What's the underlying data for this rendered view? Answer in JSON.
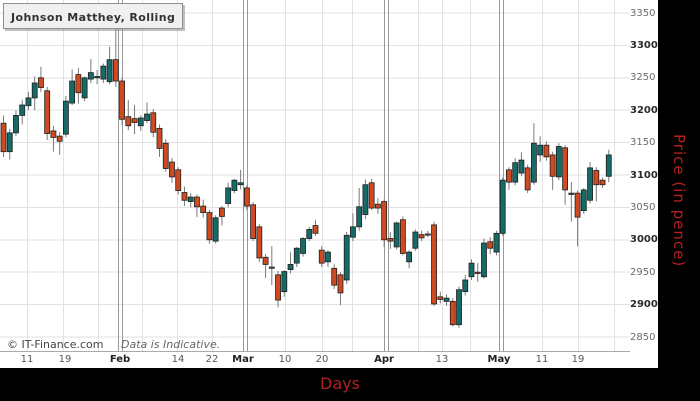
{
  "title_box": {
    "text": "Johnson Matthey, Rolling"
  },
  "footnote": {
    "copyright": "© IT-Finance.com",
    "note": "Data is Indicative."
  },
  "colors": {
    "up_candle": "#156b66",
    "down_candle": "#cf4a21",
    "candle_border": "#1f1f1f",
    "wick": "#7a7a7a",
    "grid": "#e2e2e2",
    "month_line": "#999999",
    "plot_border": "#aaaaaa",
    "axis_title_red": "#b42020",
    "band_black": "#000000"
  },
  "chart_data": {
    "type": "candlestick",
    "title": "Johnson Matthey, Rolling",
    "xlabel": "Days",
    "ylabel": "Price (in pence)",
    "ylim": [
      2840,
      3360
    ],
    "y_ticks": [
      3350,
      3300,
      3250,
      3200,
      3150,
      3100,
      3050,
      3000,
      2950,
      2900,
      2850
    ],
    "x_ticks": [
      {
        "label": "11",
        "x": 27,
        "bold": false
      },
      {
        "label": "19",
        "x": 65,
        "bold": false
      },
      {
        "label": "Feb",
        "x": 120,
        "bold": true
      },
      {
        "label": "14",
        "x": 178,
        "bold": false
      },
      {
        "label": "22",
        "x": 212,
        "bold": false
      },
      {
        "label": "Mar",
        "x": 243,
        "bold": true
      },
      {
        "label": "10",
        "x": 285,
        "bold": false
      },
      {
        "label": "20",
        "x": 322,
        "bold": false
      },
      {
        "label": "Apr",
        "x": 384,
        "bold": true
      },
      {
        "label": "13",
        "x": 442,
        "bold": false
      },
      {
        "label": "May",
        "x": 499,
        "bold": true
      },
      {
        "label": "11",
        "x": 542,
        "bold": false
      },
      {
        "label": "19",
        "x": 578,
        "bold": false
      }
    ],
    "month_gridlines_x": [
      118,
      243,
      384,
      499
    ],
    "weekly_gridlines_x": [
      27,
      63,
      98,
      142,
      177,
      212,
      285,
      322,
      352,
      418,
      442,
      470,
      542,
      578,
      614,
      630
    ],
    "legend_position": "top-left",
    "grid": true,
    "candles_ohlc": [
      [
        3180,
        3192,
        3128,
        3136
      ],
      [
        3136,
        3171,
        3124,
        3165
      ],
      [
        3165,
        3200,
        3160,
        3192
      ],
      [
        3192,
        3216,
        3178,
        3208
      ],
      [
        3207,
        3228,
        3200,
        3219
      ],
      [
        3219,
        3252,
        3200,
        3242
      ],
      [
        3250,
        3267,
        3228,
        3235
      ],
      [
        3230,
        3236,
        3154,
        3164
      ],
      [
        3168,
        3176,
        3136,
        3158
      ],
      [
        3160,
        3166,
        3131,
        3152
      ],
      [
        3163,
        3222,
        3158,
        3214
      ],
      [
        3211,
        3263,
        3208,
        3245
      ],
      [
        3255,
        3265,
        3210,
        3227
      ],
      [
        3219,
        3252,
        3214,
        3250
      ],
      [
        3248,
        3279,
        3242,
        3258
      ],
      [
        3250,
        3262,
        3240,
        3252
      ],
      [
        3248,
        3272,
        3242,
        3268
      ],
      [
        3244,
        3298,
        3240,
        3278
      ],
      [
        3278,
        3340,
        3236,
        3245
      ],
      [
        3245,
        3250,
        3177,
        3186
      ],
      [
        3190,
        3216,
        3169,
        3176
      ],
      [
        3187,
        3208,
        3163,
        3181
      ],
      [
        3176,
        3192,
        3168,
        3188
      ],
      [
        3184,
        3212,
        3180,
        3194
      ],
      [
        3196,
        3202,
        3158,
        3166
      ],
      [
        3172,
        3178,
        3128,
        3141
      ],
      [
        3149,
        3155,
        3105,
        3110
      ],
      [
        3120,
        3126,
        3088,
        3097
      ],
      [
        3108,
        3112,
        3070,
        3076
      ],
      [
        3073,
        3082,
        3052,
        3061
      ],
      [
        3059,
        3072,
        3050,
        3066
      ],
      [
        3066,
        3070,
        3035,
        3051
      ],
      [
        3052,
        3062,
        3034,
        3042
      ],
      [
        3042,
        3046,
        2994,
        3000
      ],
      [
        2998,
        3038,
        2994,
        3034
      ],
      [
        3049,
        3052,
        3022,
        3036
      ],
      [
        3056,
        3088,
        3050,
        3080
      ],
      [
        3076,
        3094,
        3072,
        3092
      ],
      [
        3085,
        3108,
        3078,
        3088
      ],
      [
        3080,
        3084,
        3046,
        3052
      ],
      [
        3054,
        3058,
        2998,
        3002
      ],
      [
        3020,
        3024,
        2966,
        2972
      ],
      [
        2973,
        2978,
        2941,
        2962
      ],
      [
        2958,
        2990,
        2930,
        2956
      ],
      [
        2946,
        2952,
        2896,
        2907
      ],
      [
        2920,
        2953,
        2912,
        2951
      ],
      [
        2954,
        2981,
        2948,
        2962
      ],
      [
        2964,
        2989,
        2958,
        2987
      ],
      [
        2979,
        3004,
        2974,
        3002
      ],
      [
        3002,
        3020,
        2998,
        3016
      ],
      [
        3022,
        3031,
        3006,
        3010
      ],
      [
        2984,
        2990,
        2958,
        2964
      ],
      [
        2966,
        2984,
        2958,
        2981
      ],
      [
        2956,
        2962,
        2924,
        2930
      ],
      [
        2946,
        2950,
        2899,
        2918
      ],
      [
        2938,
        3012,
        2932,
        3007
      ],
      [
        3004,
        3041,
        2998,
        3020
      ],
      [
        3020,
        3080,
        3014,
        3051
      ],
      [
        3039,
        3093,
        3032,
        3085
      ],
      [
        3088,
        3094,
        3046,
        3049
      ],
      [
        3055,
        3064,
        3040,
        3049
      ],
      [
        3059,
        3062,
        2989,
        3000
      ],
      [
        3002,
        3012,
        2986,
        2998
      ],
      [
        2989,
        3028,
        2985,
        3026
      ],
      [
        3031,
        3036,
        2976,
        2979
      ],
      [
        2966,
        2984,
        2956,
        2981
      ],
      [
        2987,
        3016,
        2983,
        3012
      ],
      [
        3008,
        3014,
        2998,
        3003
      ],
      [
        3009,
        3014,
        3004,
        3008
      ],
      [
        3023,
        3028,
        2898,
        2901
      ],
      [
        2912,
        2920,
        2902,
        2908
      ],
      [
        2905,
        2916,
        2898,
        2910
      ],
      [
        2905,
        2910,
        2866,
        2869
      ],
      [
        2869,
        2928,
        2864,
        2923
      ],
      [
        2920,
        2946,
        2914,
        2938
      ],
      [
        2943,
        2970,
        2938,
        2964
      ],
      [
        2950,
        2964,
        2935,
        2948
      ],
      [
        2943,
        3002,
        2940,
        2995
      ],
      [
        2997,
        3004,
        2978,
        2987
      ],
      [
        2981,
        3014,
        2976,
        3010
      ],
      [
        3010,
        3096,
        3006,
        3092
      ],
      [
        3108,
        3112,
        3077,
        3089
      ],
      [
        3089,
        3126,
        3084,
        3119
      ],
      [
        3103,
        3135,
        3098,
        3123
      ],
      [
        3111,
        3116,
        3072,
        3077
      ],
      [
        3089,
        3180,
        3085,
        3149
      ],
      [
        3131,
        3160,
        3120,
        3146
      ],
      [
        3146,
        3152,
        3122,
        3128
      ],
      [
        3131,
        3136,
        3077,
        3098
      ],
      [
        3097,
        3149,
        3092,
        3144
      ],
      [
        3142,
        3146,
        3054,
        3077
      ],
      [
        3070,
        3089,
        3028,
        3072
      ],
      [
        3072,
        3076,
        2990,
        3035
      ],
      [
        3045,
        3080,
        3040,
        3077
      ],
      [
        3061,
        3120,
        3056,
        3111
      ],
      [
        3107,
        3112,
        3059,
        3085
      ],
      [
        3092,
        3096,
        3080,
        3085
      ],
      [
        3098,
        3139,
        3089,
        3131
      ]
    ]
  }
}
